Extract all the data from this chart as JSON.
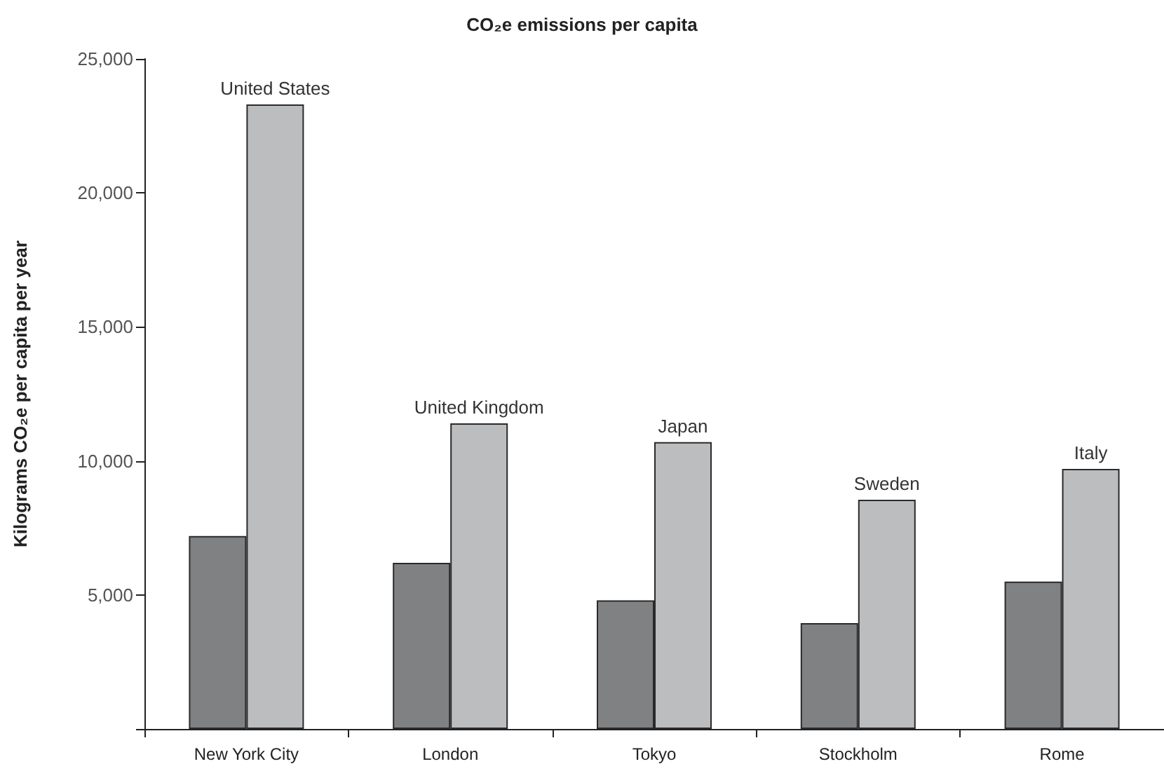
{
  "chart_data": {
    "type": "bar",
    "title": "CO₂e emissions per capita",
    "ylabel": "Kilograms CO₂e per capita per year",
    "categories": [
      "New York City",
      "London",
      "Tokyo",
      "Stockholm",
      "Rome"
    ],
    "series": [
      {
        "color": "#808183",
        "values": [
          7200,
          6200,
          4800,
          3950,
          5500
        ]
      },
      {
        "color": "#bcbdbf",
        "values": [
          23300,
          11400,
          10700,
          8550,
          9700
        ]
      }
    ],
    "ylim": [
      0,
      25000
    ],
    "yticks": [
      {
        "value": 0,
        "label": null
      },
      {
        "value": 5000,
        "label": "5,000"
      },
      {
        "value": 10000,
        "label": "10,000"
      },
      {
        "value": 15000,
        "label": "15,000"
      },
      {
        "value": 20000,
        "label": "20,000"
      },
      {
        "value": 25000,
        "label": "25,000"
      }
    ],
    "grid": false,
    "annotations": [
      {
        "text": "United States",
        "x": "New York City",
        "y": 23300
      },
      {
        "text": "United Kingdom",
        "x": "London",
        "y": 11400
      },
      {
        "text": "Japan",
        "x": "Tokyo",
        "y": 10700
      },
      {
        "text": "Sweden",
        "x": "Stockholm",
        "y": 8550
      },
      {
        "text": "Italy",
        "x": "Rome",
        "y": 9700
      }
    ]
  }
}
